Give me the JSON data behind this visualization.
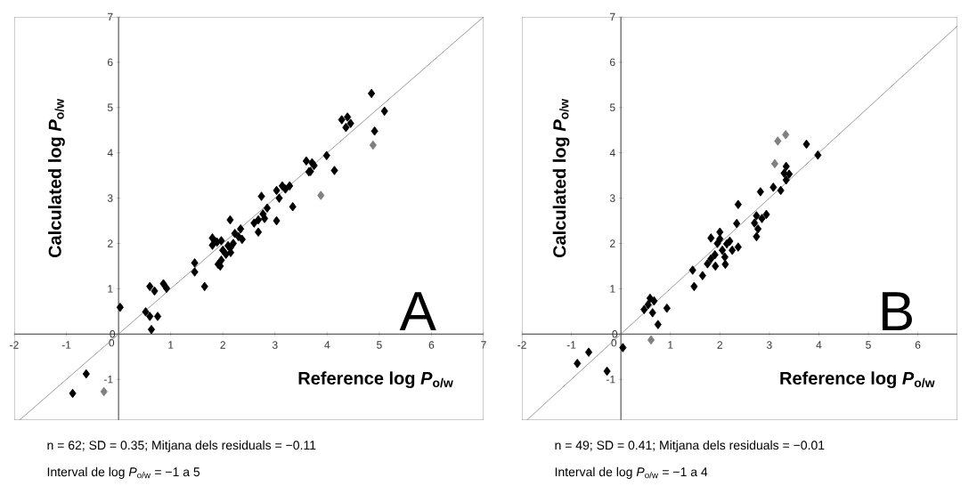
{
  "chart_data": [
    {
      "type": "scatter",
      "xlabel": "Reference log *P*$_{o/w}$",
      "ylabel": "Calculated log *P*$_{o/w}$",
      "xlim": [
        -2,
        7
      ],
      "ylim": [
        -1.9,
        7
      ],
      "xticks": [
        -2,
        -1,
        0,
        1,
        2,
        3,
        4,
        5,
        6,
        7
      ],
      "yticks": [
        -1,
        0,
        1,
        2,
        3,
        4,
        5,
        6,
        7
      ],
      "marker": "diamond",
      "grid": false,
      "annotations": [
        "A",
        "n = 62; SD = 0.35; Mitjana dels residuals = −0.11",
        "Interval de log *P*$_{o/w}$ = −1 a 5"
      ],
      "series": [
        {
          "color": "#000000",
          "x": [
            0.03,
            0.52,
            0.6,
            0.75,
            0.63,
            0.6,
            0.69,
            0.86,
            0.92,
            1.46,
            1.46,
            1.65,
            1.8,
            1.8,
            1.89,
            1.97,
            1.91,
            1.97,
            2.06,
            2.14,
            2.14,
            2.23,
            2.34,
            2.37,
            1.85,
            2.1,
            2.68,
            2.74,
            2.68,
            2.77,
            2.85,
            3.03,
            3.08,
            3.03,
            3.14,
            3.28,
            3.34,
            3.6,
            3.68,
            3.71,
            3.65,
            3.99,
            4.14,
            4.28,
            4.39,
            4.36,
            4.85,
            5.1,
            4.91,
            -0.88,
            -0.62,
            2.0,
            2.2,
            2.8,
            3.2,
            2.6,
            1.95,
            2.3,
            4.45,
            3.75,
            2.15
          ],
          "values": [
            0.59,
            0.49,
            0.39,
            0.39,
            0.1,
            1.05,
            0.95,
            1.11,
            1.01,
            1.57,
            1.37,
            1.05,
            2.12,
            1.96,
            2.03,
            2.06,
            1.54,
            1.63,
            1.76,
            1.9,
            2.52,
            2.22,
            2.32,
            2.09,
            2.05,
            1.95,
            2.25,
            3.04,
            2.52,
            2.65,
            2.78,
            2.5,
            3.0,
            3.17,
            3.27,
            3.27,
            2.81,
            3.82,
            3.59,
            3.78,
            3.58,
            3.94,
            3.61,
            4.73,
            4.79,
            4.56,
            5.31,
            4.92,
            4.48,
            -1.31,
            -0.88,
            1.85,
            2.0,
            2.55,
            3.2,
            2.45,
            1.5,
            2.15,
            4.65,
            3.72,
            1.8
          ]
        },
        {
          "color": "#808080",
          "x": [
            4.88,
            3.88,
            -0.28
          ],
          "values": [
            4.17,
            3.06,
            -1.27
          ]
        },
        {
          "type": "line",
          "marker": "none",
          "color": "#808080",
          "x": [
            -1.9,
            7
          ],
          "values": [
            -1.9,
            7
          ]
        }
      ]
    },
    {
      "type": "scatter",
      "xlabel": "Reference log *P*$_{o/w}$",
      "ylabel": "Calculated log *P*$_{o/w}$",
      "xlim": [
        -2,
        6.8
      ],
      "ylim": [
        -1.9,
        7
      ],
      "xticks": [
        -2,
        -1,
        0,
        1,
        2,
        3,
        4,
        5,
        6
      ],
      "yticks": [
        -1,
        0,
        1,
        2,
        3,
        4,
        5,
        6,
        7
      ],
      "marker": "diamond",
      "grid": false,
      "annotations": [
        "B",
        "n = 49; SD = 0.41; Mitjana dels residuals = −0.01",
        "Interval de log *P*$_{o/w}$ = −1 a 4"
      ],
      "series": [
        {
          "color": "#000000",
          "x": [
            -0.88,
            -0.65,
            -0.28,
            0.04,
            0.47,
            0.59,
            0.67,
            0.64,
            0.75,
            0.93,
            1.45,
            1.48,
            1.65,
            1.82,
            2.0,
            1.82,
            1.91,
            2.11,
            2.14,
            2.37,
            2.34,
            2.37,
            2.74,
            2.77,
            2.74,
            2.94,
            2.82,
            3.08,
            3.23,
            3.34,
            3.4,
            3.34,
            3.75,
            3.98,
            1.95,
            2.05,
            2.2,
            1.9,
            2.1,
            2.85,
            3.3,
            2.0,
            2.25,
            0.55,
            1.75,
            2.7
          ],
          "values": [
            -0.65,
            -0.4,
            -0.82,
            -0.3,
            0.54,
            0.79,
            0.73,
            0.47,
            0.21,
            0.57,
            1.41,
            1.05,
            1.29,
            2.12,
            2.25,
            1.66,
            1.5,
            1.54,
            1.99,
            1.92,
            2.44,
            2.86,
            2.15,
            2.32,
            2.61,
            2.64,
            3.14,
            3.24,
            3.17,
            3.7,
            3.53,
            3.4,
            4.19,
            3.95,
            2.0,
            1.85,
            2.05,
            1.75,
            1.7,
            2.55,
            3.55,
            2.1,
            1.85,
            0.65,
            1.55,
            2.45
          ]
        },
        {
          "color": "#808080",
          "x": [
            0.61,
            3.11,
            3.17,
            3.33
          ],
          "values": [
            -0.13,
            3.76,
            4.26,
            4.4
          ]
        },
        {
          "type": "line",
          "marker": "none",
          "color": "#808080",
          "x": [
            -1.9,
            6.8
          ],
          "values": [
            -1.9,
            6.8
          ]
        }
      ]
    }
  ]
}
